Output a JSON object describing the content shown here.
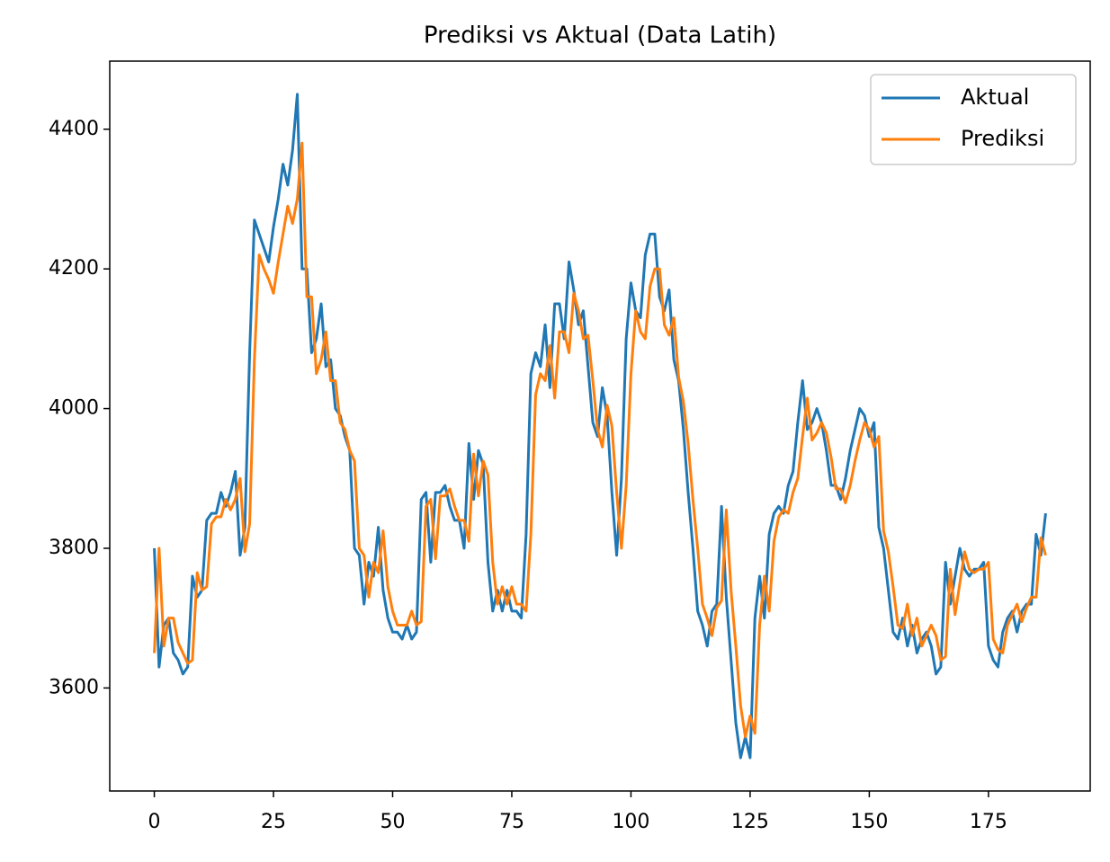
{
  "chart_data": {
    "type": "line",
    "title": "Prediksi vs Aktual (Data Latih)",
    "x": [
      0,
      1,
      2,
      3,
      4,
      5,
      6,
      7,
      8,
      9,
      10,
      11,
      12,
      13,
      14,
      15,
      16,
      17,
      18,
      19,
      20,
      21,
      22,
      23,
      24,
      25,
      26,
      27,
      28,
      29,
      30,
      31,
      32,
      33,
      34,
      35,
      36,
      37,
      38,
      39,
      40,
      41,
      42,
      43,
      44,
      45,
      46,
      47,
      48,
      49,
      50,
      51,
      52,
      53,
      54,
      55,
      56,
      57,
      58,
      59,
      60,
      61,
      62,
      63,
      64,
      65,
      66,
      67,
      68,
      69,
      70,
      71,
      72,
      73,
      74,
      75,
      76,
      77,
      78,
      79,
      80,
      81,
      82,
      83,
      84,
      85,
      86,
      87,
      88,
      89,
      90,
      91,
      92,
      93,
      94,
      95,
      96,
      97,
      98,
      99,
      100,
      101,
      102,
      103,
      104,
      105,
      106,
      107,
      108,
      109,
      110,
      111,
      112,
      113,
      114,
      115,
      116,
      117,
      118,
      119,
      120,
      121,
      122,
      123,
      124,
      125,
      126,
      127,
      128,
      129,
      130,
      131,
      132,
      133,
      134,
      135,
      136,
      137,
      138,
      139,
      140,
      141,
      142,
      143,
      144,
      145,
      146,
      147,
      148,
      149,
      150,
      151,
      152,
      153,
      154,
      155,
      156,
      157,
      158,
      159,
      160,
      161,
      162,
      163,
      164,
      165,
      166,
      167,
      168,
      169,
      170,
      171,
      172,
      173,
      174,
      175,
      176,
      177,
      178,
      179,
      180,
      181,
      182,
      183,
      184,
      185,
      186,
      187
    ],
    "series": [
      {
        "name": "Aktual",
        "color": "#1f77b4",
        "values": [
          3800,
          3630,
          3690,
          3700,
          3650,
          3640,
          3620,
          3630,
          3760,
          3730,
          3740,
          3840,
          3850,
          3850,
          3880,
          3860,
          3880,
          3910,
          3790,
          3830,
          4080,
          4270,
          4250,
          4230,
          4210,
          4260,
          4300,
          4350,
          4320,
          4370,
          4450,
          4200,
          4200,
          4080,
          4100,
          4150,
          4060,
          4070,
          4000,
          3990,
          3960,
          3940,
          3800,
          3790,
          3720,
          3780,
          3760,
          3830,
          3740,
          3700,
          3680,
          3680,
          3670,
          3690,
          3670,
          3680,
          3870,
          3880,
          3780,
          3880,
          3880,
          3890,
          3860,
          3840,
          3840,
          3800,
          3950,
          3870,
          3940,
          3920,
          3780,
          3710,
          3740,
          3710,
          3740,
          3710,
          3710,
          3700,
          3820,
          4050,
          4080,
          4060,
          4120,
          4030,
          4150,
          4150,
          4100,
          4210,
          4170,
          4120,
          4140,
          4060,
          3980,
          3960,
          4030,
          3990,
          3880,
          3790,
          3900,
          4100,
          4180,
          4140,
          4130,
          4220,
          4250,
          4250,
          4160,
          4140,
          4170,
          4070,
          4040,
          3970,
          3880,
          3800,
          3710,
          3690,
          3660,
          3710,
          3720,
          3860,
          3730,
          3640,
          3550,
          3500,
          3530,
          3500,
          3700,
          3760,
          3700,
          3820,
          3850,
          3860,
          3850,
          3890,
          3910,
          3980,
          4040,
          3970,
          3980,
          4000,
          3980,
          3940,
          3890,
          3890,
          3870,
          3900,
          3940,
          3970,
          4000,
          3990,
          3960,
          3980,
          3830,
          3800,
          3740,
          3680,
          3670,
          3700,
          3660,
          3690,
          3650,
          3670,
          3680,
          3660,
          3620,
          3630,
          3780,
          3720,
          3760,
          3800,
          3770,
          3760,
          3770,
          3770,
          3780,
          3660,
          3640,
          3630,
          3680,
          3700,
          3710,
          3680,
          3710,
          3720,
          3720,
          3820,
          3790,
          3850
        ]
      },
      {
        "name": "Prediksi",
        "color": "#ff7f0e",
        "values": [
          3650,
          3800,
          3660,
          3700,
          3700,
          3665,
          3650,
          3635,
          3640,
          3765,
          3740,
          3745,
          3835,
          3845,
          3845,
          3870,
          3855,
          3870,
          3900,
          3795,
          3835,
          4070,
          4220,
          4200,
          4185,
          4165,
          4210,
          4250,
          4290,
          4265,
          4300,
          4380,
          4160,
          4160,
          4050,
          4070,
          4110,
          4040,
          4040,
          3980,
          3970,
          3940,
          3925,
          3800,
          3790,
          3730,
          3780,
          3765,
          3825,
          3745,
          3710,
          3690,
          3690,
          3690,
          3710,
          3690,
          3695,
          3860,
          3870,
          3785,
          3875,
          3875,
          3885,
          3860,
          3840,
          3840,
          3810,
          3935,
          3875,
          3925,
          3905,
          3780,
          3720,
          3745,
          3720,
          3745,
          3720,
          3720,
          3710,
          3820,
          4020,
          4050,
          4040,
          4090,
          4015,
          4110,
          4110,
          4080,
          4165,
          4140,
          4100,
          4105,
          4040,
          3970,
          3945,
          4005,
          3975,
          3880,
          3800,
          3890,
          4050,
          4140,
          4110,
          4100,
          4175,
          4200,
          4200,
          4120,
          4105,
          4130,
          4045,
          4010,
          3950,
          3870,
          3800,
          3720,
          3700,
          3675,
          3715,
          3725,
          3855,
          3740,
          3660,
          3575,
          3530,
          3560,
          3535,
          3690,
          3760,
          3710,
          3810,
          3845,
          3855,
          3850,
          3880,
          3900,
          3960,
          4015,
          3955,
          3965,
          3980,
          3965,
          3930,
          3885,
          3885,
          3865,
          3890,
          3925,
          3955,
          3980,
          3970,
          3945,
          3960,
          3825,
          3795,
          3745,
          3690,
          3685,
          3720,
          3675,
          3700,
          3660,
          3675,
          3690,
          3675,
          3640,
          3645,
          3770,
          3705,
          3750,
          3795,
          3770,
          3765,
          3770,
          3770,
          3780,
          3670,
          3655,
          3650,
          3690,
          3705,
          3720,
          3695,
          3715,
          3730,
          3730,
          3815,
          3790
        ]
      }
    ],
    "xlim": [
      -9.35,
      196.35
    ],
    "ylim": [
      3452.5,
      4497.5
    ],
    "xticks": [
      0,
      25,
      50,
      75,
      100,
      125,
      150,
      175
    ],
    "yticks": [
      3600,
      3800,
      4000,
      4200,
      4400
    ],
    "legend": "upper right"
  }
}
